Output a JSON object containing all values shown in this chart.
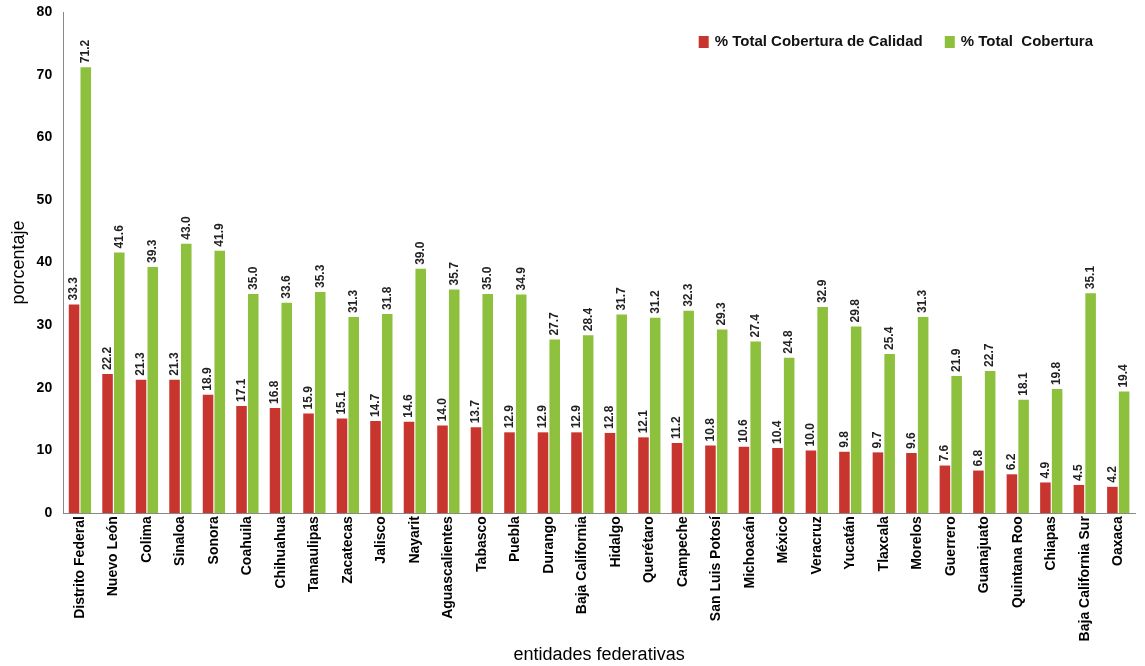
{
  "chart_data": {
    "type": "bar",
    "xlabel": "entidades federativas",
    "ylabel": "porcentaje",
    "categories": [
      "Distrito Federal",
      "Nuevo León",
      "Colima",
      "Sinaloa",
      "Sonora",
      "Coahuila",
      "Chihuahua",
      "Tamaulipas",
      "Zacatecas",
      "Jalisco",
      "Nayarit",
      "Aguascalientes",
      "Tabasco",
      "Puebla",
      "Durango",
      "Baja California",
      "Hidalgo",
      "Querétaro",
      "Campeche",
      "San Luis Potosí",
      "Michoacán",
      "México",
      "Veracruz",
      "Yucatán",
      "Tlaxcala",
      "Morelos",
      "Guerrero",
      "Guanajuato",
      "Quintana Roo",
      "Chiapas",
      "Baja California Sur",
      "Oaxaca"
    ],
    "series": [
      {
        "name": "% Total Cobertura de Calidad",
        "color": "#c8352e",
        "values": [
          33.3,
          22.2,
          21.3,
          21.3,
          18.9,
          17.1,
          16.8,
          15.9,
          15.1,
          14.7,
          14.6,
          14.0,
          13.7,
          12.9,
          12.9,
          12.9,
          12.8,
          12.1,
          11.2,
          10.8,
          10.6,
          10.4,
          10.0,
          9.8,
          9.7,
          9.6,
          7.6,
          6.8,
          6.2,
          4.9,
          4.5,
          4.2
        ],
        "value_labels": [
          "33.3",
          "22.2",
          "21.3",
          "21.3",
          "18.9",
          "17.1",
          "16.8",
          "15.9",
          "15.1",
          "14.7",
          "14.6",
          "14.0",
          "13.7",
          "12.9",
          "12.9",
          "12.9",
          "12.8",
          "12.1",
          "11.2",
          "10.8",
          "10.6",
          "10.4",
          "10.0",
          "9.8",
          "9.7",
          "9.6",
          "7.6",
          "6.8",
          "6.2",
          "4.9",
          "4.5",
          "4.2"
        ]
      },
      {
        "name": "% Total  Cobertura",
        "color": "#8dc03c",
        "values": [
          71.2,
          41.6,
          39.3,
          43.0,
          41.9,
          35.0,
          33.6,
          35.3,
          31.3,
          31.8,
          39.0,
          35.7,
          35.0,
          34.9,
          27.7,
          28.4,
          31.7,
          31.2,
          32.3,
          29.3,
          27.4,
          24.8,
          32.9,
          29.8,
          25.4,
          31.3,
          21.9,
          22.7,
          18.1,
          19.8,
          35.1,
          19.4
        ],
        "value_labels": [
          "71.2",
          "41.6",
          "39.3",
          "43.0",
          "41.9",
          "35.0",
          "33.6",
          "35.3",
          "31.3",
          "31.8",
          "39.0",
          "35.7",
          "35.0",
          "34.9",
          "27.7",
          "28.4",
          "31.7",
          "31.2",
          "32.3",
          "29.3",
          "27.4",
          "24.8",
          "32.9",
          "29.8",
          "25.4",
          "31.3",
          "21.9",
          "22.7",
          "18.1",
          "19.8",
          "35.1",
          "19.4"
        ]
      }
    ],
    "ylim": [
      0,
      80
    ],
    "yticks": [
      0,
      10,
      20,
      30,
      40,
      50,
      60,
      70,
      80
    ],
    "legend": "top right",
    "grid": false
  }
}
